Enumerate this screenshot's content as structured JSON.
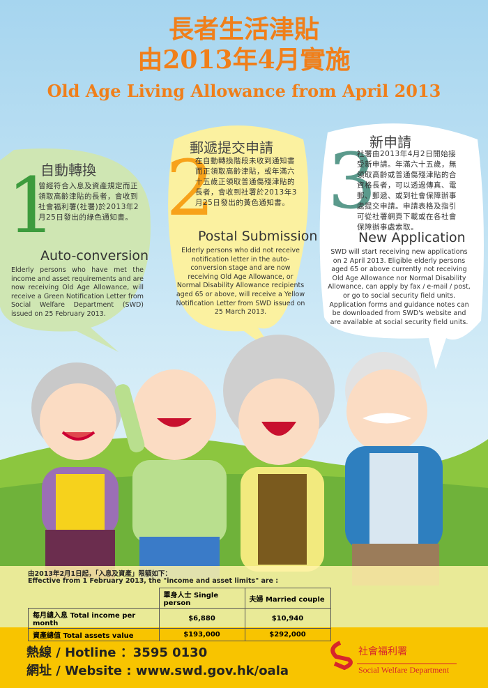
{
  "title": {
    "zh": [
      "長者生活津貼",
      "由2013年4月實施"
    ],
    "en": "Old Age Living Allowance from April 2013"
  },
  "steps": [
    {
      "number": "1",
      "zh_title": "自動轉換",
      "zh_text": "曾經符合入息及資產規定而正領取高齡津貼的長者，會收到社會福利署(社署)於2013年2月25日發出的綠色通知書。",
      "en_title": "Auto-conversion",
      "en_text": "Elderly persons who have met the income and asset requirements and are now receiving Old Age Allowance, will receive a Green Notification Letter from Social Welfare Department (SWD) issued on 25 February 2013."
    },
    {
      "number": "2",
      "zh_title": "郵遞提交申請",
      "zh_text": "在自動轉換階段未收到通知書而正領取高齡津貼，或年滿六十五歲正領取普通傷殘津貼的長者，會收到社署於2013年3月25日發出的黃色通知書。",
      "en_title": "Postal Submission",
      "en_text": "Elderly persons who did not receive notification letter in the auto-conversion stage and are now receiving Old Age Allowance, or Normal Disability Allowance recipients aged 65 or above, will receive a Yellow Notification Letter from SWD issued on 25 March 2013."
    },
    {
      "number": "3",
      "zh_title": "新申請",
      "zh_text": "社署由2013年4月2日開始接受新申請。年滿六十五歲，無領取高齡或普通傷殘津貼的合資格長者，可以透過傳真、電郵、郵遞、或到社會保障辦事處提交申請。申請表格及指引可從社署網頁下載或在各社會保障辦事處索取。",
      "en_title": "New Application",
      "en_text": "SWD will start receiving new applications on 2 April 2013. Eligible elderly persons aged 65 or above currently not receiving Old Age Allowance nor Normal Disability Allowance, can apply by fax / e-mail / post, or go to social security field units. Application forms and guidance notes can be downloaded from SWD's website and are available at social security field units."
    }
  ],
  "limits": {
    "intro_zh": "由2013年2月1日起，「入息及資產」限額如下：",
    "intro_en": "Effective from 1 February 2013, the \"income and asset limits\" are :",
    "header": [
      "單身人士 Single person",
      "夫婦 Married couple"
    ],
    "rows": [
      [
        "每月總入息 Total income per month",
        "$6,880",
        "$10,940"
      ],
      [
        "資產總值 Total assets value",
        "$193,000",
        "$292,000"
      ]
    ]
  },
  "footer": {
    "hotline": "熱線 / Hotline ：3595 0130",
    "website": "網址 / Website : www.swd.gov.hk/oala",
    "dept_zh": "社會福利署",
    "dept_en": "Social Welfare Department"
  }
}
